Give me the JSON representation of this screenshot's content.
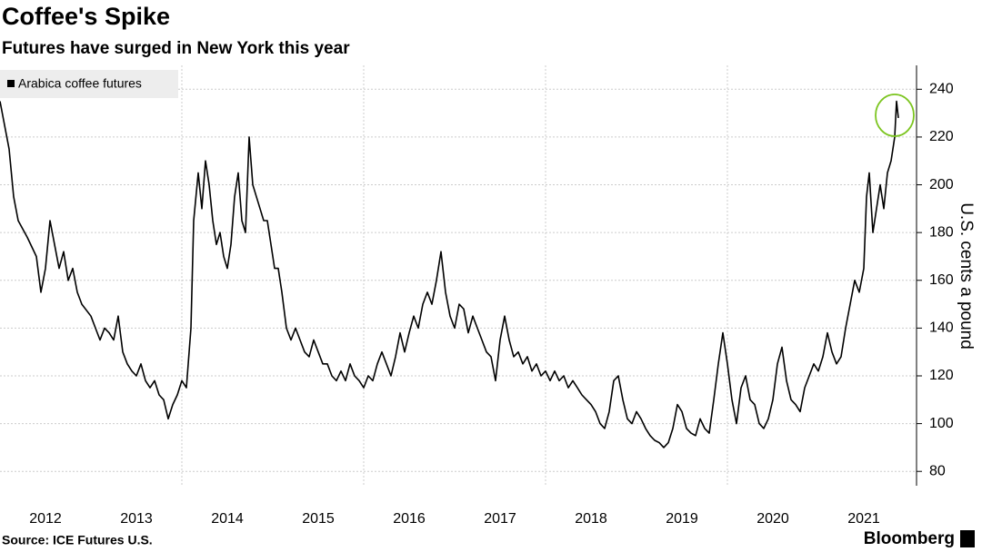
{
  "chart_data": {
    "type": "line",
    "title": "Coffee's Spike",
    "subtitle": "Futures have surged in New York this year",
    "y_axis_label": "U.S. cents a pound",
    "source": "Source: ICE Futures U.S.",
    "brand": "Bloomberg",
    "legend": "top-left",
    "grid": true,
    "ylim": [
      74,
      250
    ],
    "yticks": [
      80,
      100,
      120,
      140,
      160,
      180,
      200,
      220,
      240
    ],
    "xlim": [
      2012,
      2022.08
    ],
    "xticks": [
      {
        "value": 2012.5,
        "label": "2012"
      },
      {
        "value": 2013.5,
        "label": "2013"
      },
      {
        "value": 2014.5,
        "label": "2014"
      },
      {
        "value": 2015.5,
        "label": "2015"
      },
      {
        "value": 2016.5,
        "label": "2016"
      },
      {
        "value": 2017.5,
        "label": "2017"
      },
      {
        "value": 2018.5,
        "label": "2018"
      },
      {
        "value": 2019.5,
        "label": "2019"
      },
      {
        "value": 2020.5,
        "label": "2020"
      },
      {
        "value": 2021.5,
        "label": "2021"
      }
    ],
    "xgrid": [
      2014,
      2016,
      2018,
      2020
    ],
    "x": [
      2012,
      2012.05,
      2012.1,
      2012.15,
      2012.2,
      2012.3,
      2012.4,
      2012.45,
      2012.5,
      2012.55,
      2012.6,
      2012.65,
      2012.7,
      2012.75,
      2012.8,
      2012.85,
      2012.9,
      2013,
      2013.05,
      2013.1,
      2013.15,
      2013.2,
      2013.25,
      2013.3,
      2013.35,
      2013.4,
      2013.45,
      2013.5,
      2013.55,
      2013.6,
      2013.65,
      2013.7,
      2013.75,
      2013.8,
      2013.85,
      2013.9,
      2013.95,
      2014,
      2014.05,
      2014.1,
      2014.13,
      2014.18,
      2014.22,
      2014.26,
      2014.3,
      2014.34,
      2014.38,
      2014.42,
      2014.46,
      2014.5,
      2014.54,
      2014.58,
      2014.62,
      2014.66,
      2014.7,
      2014.74,
      2014.78,
      2014.82,
      2014.86,
      2014.9,
      2014.94,
      2014.98,
      2015.02,
      2015.06,
      2015.1,
      2015.15,
      2015.2,
      2015.25,
      2015.3,
      2015.35,
      2015.4,
      2015.45,
      2015.5,
      2015.55,
      2015.6,
      2015.65,
      2015.7,
      2015.75,
      2015.8,
      2015.85,
      2015.9,
      2015.95,
      2016,
      2016.05,
      2016.1,
      2016.15,
      2016.2,
      2016.25,
      2016.3,
      2016.35,
      2016.4,
      2016.45,
      2016.5,
      2016.55,
      2016.6,
      2016.65,
      2016.7,
      2016.75,
      2016.8,
      2016.85,
      2016.9,
      2016.95,
      2017,
      2017.05,
      2017.1,
      2017.15,
      2017.2,
      2017.25,
      2017.3,
      2017.35,
      2017.4,
      2017.45,
      2017.5,
      2017.55,
      2017.6,
      2017.65,
      2017.7,
      2017.75,
      2017.8,
      2017.85,
      2017.9,
      2017.95,
      2018,
      2018.05,
      2018.1,
      2018.15,
      2018.2,
      2018.25,
      2018.3,
      2018.35,
      2018.4,
      2018.45,
      2018.5,
      2018.55,
      2018.6,
      2018.65,
      2018.7,
      2018.75,
      2018.8,
      2018.85,
      2018.9,
      2018.95,
      2019,
      2019.05,
      2019.1,
      2019.15,
      2019.2,
      2019.25,
      2019.3,
      2019.35,
      2019.4,
      2019.45,
      2019.5,
      2019.55,
      2019.6,
      2019.65,
      2019.7,
      2019.75,
      2019.8,
      2019.85,
      2019.9,
      2019.95,
      2020,
      2020.05,
      2020.1,
      2020.15,
      2020.2,
      2020.25,
      2020.3,
      2020.35,
      2020.4,
      2020.45,
      2020.5,
      2020.55,
      2020.6,
      2020.65,
      2020.7,
      2020.75,
      2020.8,
      2020.85,
      2020.9,
      2020.95,
      2021,
      2021.05,
      2021.1,
      2021.15,
      2021.2,
      2021.25,
      2021.3,
      2021.35,
      2021.4,
      2021.45,
      2021.5,
      2021.53,
      2021.56,
      2021.6,
      2021.64,
      2021.68,
      2021.72,
      2021.76,
      2021.8,
      2021.84,
      2021.86,
      2021.88
    ],
    "series": [
      {
        "name": "Arabica coffee futures",
        "color": "#000000",
        "values": [
          235,
          225,
          215,
          195,
          185,
          178,
          170,
          155,
          165,
          185,
          175,
          165,
          172,
          160,
          165,
          155,
          150,
          145,
          140,
          135,
          140,
          138,
          135,
          145,
          130,
          125,
          122,
          120,
          125,
          118,
          115,
          118,
          112,
          110,
          102,
          108,
          112,
          118,
          115,
          140,
          185,
          205,
          190,
          210,
          200,
          185,
          175,
          180,
          170,
          165,
          175,
          195,
          205,
          185,
          180,
          220,
          200,
          195,
          190,
          185,
          185,
          175,
          165,
          165,
          155,
          140,
          135,
          140,
          135,
          130,
          128,
          135,
          130,
          125,
          125,
          120,
          118,
          122,
          118,
          125,
          120,
          118,
          115,
          120,
          118,
          125,
          130,
          125,
          120,
          128,
          138,
          130,
          138,
          145,
          140,
          150,
          155,
          150,
          160,
          172,
          155,
          145,
          140,
          150,
          148,
          138,
          145,
          140,
          135,
          130,
          128,
          118,
          135,
          145,
          135,
          128,
          130,
          125,
          128,
          122,
          125,
          120,
          122,
          118,
          122,
          118,
          120,
          115,
          118,
          115,
          112,
          110,
          108,
          105,
          100,
          98,
          105,
          118,
          120,
          110,
          102,
          100,
          105,
          102,
          98,
          95,
          93,
          92,
          90,
          92,
          98,
          108,
          105,
          98,
          96,
          95,
          102,
          98,
          96,
          110,
          125,
          138,
          125,
          110,
          100,
          115,
          120,
          110,
          108,
          100,
          98,
          102,
          110,
          125,
          132,
          118,
          110,
          108,
          105,
          115,
          120,
          125,
          122,
          128,
          138,
          130,
          125,
          128,
          140,
          150,
          160,
          155,
          165,
          195,
          205,
          180,
          190,
          200,
          190,
          205,
          210,
          220,
          235,
          228
        ]
      }
    ]
  }
}
